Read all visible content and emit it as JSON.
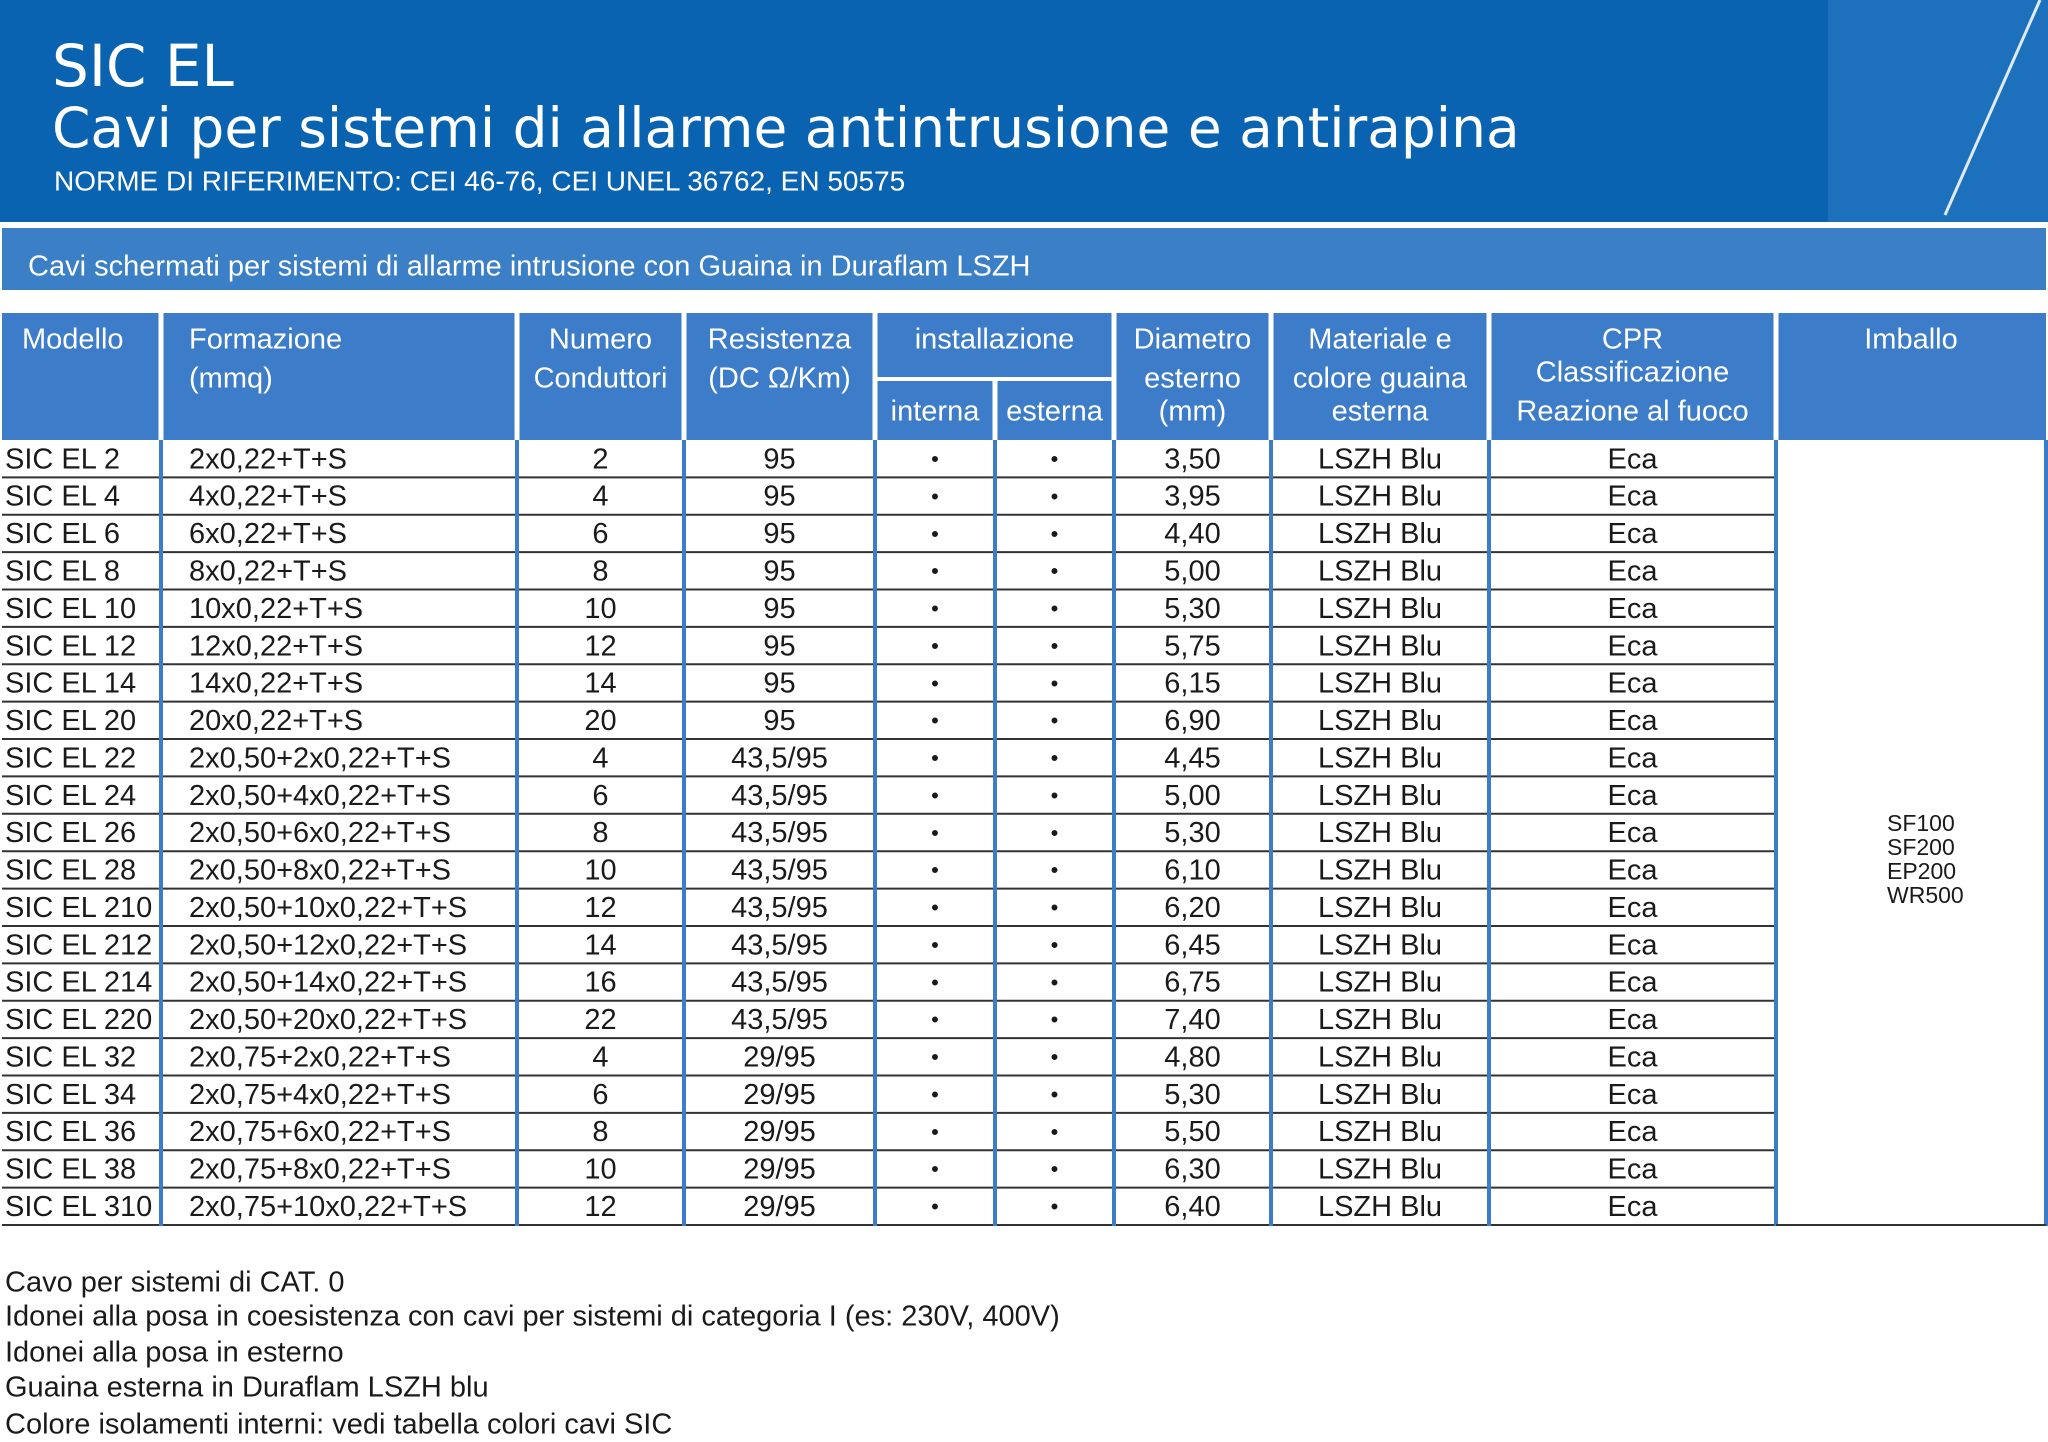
{
  "header": {
    "title": "SIC EL",
    "subtitle": "Cavi per sistemi di allarme antintrusione e antirapina",
    "norme": "NORME DI RIFERIMENTO: CEI 46-76, CEI UNEL 36762, EN 50575"
  },
  "band": "Cavi schermati per sistemi di allarme intrusione con Guaina in Duraflam LSZH",
  "table": {
    "columns": [
      [
        "Modello"
      ],
      [
        "Formazione",
        "(mmq)"
      ],
      [
        "Numero",
        "Conduttori"
      ],
      [
        "Resistenza",
        "(DC Ω/Km)"
      ],
      [
        "Diametro",
        "esterno",
        "(mm)"
      ],
      [
        "Materiale e",
        "colore guaina",
        "esterna"
      ],
      [
        "CPR",
        "Classificazione",
        "Reazione al fuoco"
      ],
      [
        "Imballo"
      ]
    ],
    "group": "installazione",
    "subcolumns": [
      "interna",
      "esterna"
    ],
    "rows": [
      [
        "SIC EL 2",
        "2x0,22+T+S",
        "2",
        "95",
        "•",
        "•",
        "3,50",
        "LSZH Blu",
        "Eca"
      ],
      [
        "SIC EL 4",
        "4x0,22+T+S",
        "4",
        "95",
        "•",
        "•",
        "3,95",
        "LSZH Blu",
        "Eca"
      ],
      [
        "SIC EL 6",
        "6x0,22+T+S",
        "6",
        "95",
        "•",
        "•",
        "4,40",
        "LSZH Blu",
        "Eca"
      ],
      [
        "SIC EL 8",
        "8x0,22+T+S",
        "8",
        "95",
        "•",
        "•",
        "5,00",
        "LSZH Blu",
        "Eca"
      ],
      [
        "SIC EL 10",
        "10x0,22+T+S",
        "10",
        "95",
        "•",
        "•",
        "5,30",
        "LSZH Blu",
        "Eca"
      ],
      [
        "SIC EL 12",
        "12x0,22+T+S",
        "12",
        "95",
        "•",
        "•",
        "5,75",
        "LSZH Blu",
        "Eca"
      ],
      [
        "SIC EL 14",
        "14x0,22+T+S",
        "14",
        "95",
        "•",
        "•",
        "6,15",
        "LSZH Blu",
        "Eca"
      ],
      [
        "SIC EL 20",
        "20x0,22+T+S",
        "20",
        "95",
        "•",
        "•",
        "6,90",
        "LSZH Blu",
        "Eca"
      ],
      [
        "SIC EL 22",
        "2x0,50+2x0,22+T+S",
        "4",
        "43,5/95",
        "•",
        "•",
        "4,45",
        "LSZH Blu",
        "Eca"
      ],
      [
        "SIC EL 24",
        "2x0,50+4x0,22+T+S",
        "6",
        "43,5/95",
        "•",
        "•",
        "5,00",
        "LSZH Blu",
        "Eca"
      ],
      [
        "SIC EL 26",
        "2x0,50+6x0,22+T+S",
        "8",
        "43,5/95",
        "•",
        "•",
        "5,30",
        "LSZH Blu",
        "Eca"
      ],
      [
        "SIC EL 28",
        "2x0,50+8x0,22+T+S",
        "10",
        "43,5/95",
        "•",
        "•",
        "6,10",
        "LSZH Blu",
        "Eca"
      ],
      [
        "SIC EL 210",
        "2x0,50+10x0,22+T+S",
        "12",
        "43,5/95",
        "•",
        "•",
        "6,20",
        "LSZH Blu",
        "Eca"
      ],
      [
        "SIC EL 212",
        "2x0,50+12x0,22+T+S",
        "14",
        "43,5/95",
        "•",
        "•",
        "6,45",
        "LSZH Blu",
        "Eca"
      ],
      [
        "SIC EL 214",
        "2x0,50+14x0,22+T+S",
        "16",
        "43,5/95",
        "•",
        "•",
        "6,75",
        "LSZH Blu",
        "Eca"
      ],
      [
        "SIC EL 220",
        "2x0,50+20x0,22+T+S",
        "22",
        "43,5/95",
        "•",
        "•",
        "7,40",
        "LSZH Blu",
        "Eca"
      ],
      [
        "SIC EL 32",
        "2x0,75+2x0,22+T+S",
        "4",
        "29/95",
        "•",
        "•",
        "4,80",
        "LSZH Blu",
        "Eca"
      ],
      [
        "SIC EL 34",
        "2x0,75+4x0,22+T+S",
        "6",
        "29/95",
        "•",
        "•",
        "5,30",
        "LSZH Blu",
        "Eca"
      ],
      [
        "SIC EL 36",
        "2x0,75+6x0,22+T+S",
        "8",
        "29/95",
        "•",
        "•",
        "5,50",
        "LSZH Blu",
        "Eca"
      ],
      [
        "SIC EL 38",
        "2x0,75+8x0,22+T+S",
        "10",
        "29/95",
        "•",
        "•",
        "6,30",
        "LSZH Blu",
        "Eca"
      ],
      [
        "SIC EL 310",
        "2x0,75+10x0,22+T+S",
        "12",
        "29/95",
        "•",
        "•",
        "6,40",
        "LSZH Blu",
        "Eca"
      ]
    ],
    "imballo": [
      "SF100",
      "SF200",
      "EP200",
      "WR500"
    ]
  },
  "notes": [
    "Cavo per sistemi di CAT. 0",
    "Idonei alla posa in coesistenza con cavi per sistemi di categoria I (es: 230V, 400V)",
    "Idonei alla posa in esterno",
    "Guaina esterna in Duraflam LSZH blu",
    "Colore isolamenti interni: vedi tabella colori cavi SIC"
  ]
}
